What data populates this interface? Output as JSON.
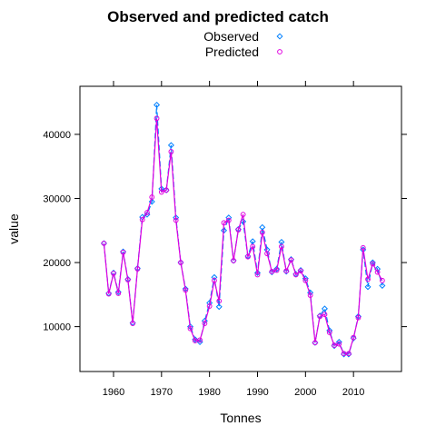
{
  "chart_data": {
    "type": "line",
    "title": "Observed and predicted catch",
    "xlabel": "Tonnes",
    "ylabel": "value",
    "xlim": [
      1953,
      2020
    ],
    "ylim": [
      3000,
      47500
    ],
    "xticks": [
      1960,
      1970,
      1980,
      1990,
      2000,
      2010
    ],
    "yticks": [
      10000,
      20000,
      30000,
      40000
    ],
    "xtick_labels": [
      "1960",
      "1970",
      "1980",
      "1990",
      "2000",
      "2010"
    ],
    "ytick_labels": [
      "10000",
      "20000",
      "30000",
      "40000"
    ],
    "grid": false,
    "legend": "top-center",
    "x": [
      1958,
      1959,
      1960,
      1961,
      1962,
      1963,
      1964,
      1965,
      1966,
      1967,
      1968,
      1969,
      1970,
      1971,
      1972,
      1973,
      1974,
      1975,
      1976,
      1977,
      1978,
      1979,
      1980,
      1981,
      1982,
      1983,
      1984,
      1985,
      1986,
      1987,
      1988,
      1989,
      1990,
      1991,
      1992,
      1993,
      1994,
      1995,
      1996,
      1997,
      1998,
      1999,
      2000,
      2001,
      2002,
      2003,
      2004,
      2005,
      2006,
      2007,
      2008,
      2009,
      2010,
      2011,
      2012,
      2013,
      2014,
      2015,
      2016
    ],
    "series": [
      {
        "name": "Observed",
        "color": "#0080ff",
        "marker": "diamond",
        "values": [
          23000,
          15200,
          18400,
          15400,
          21700,
          17400,
          10600,
          19100,
          27100,
          27500,
          29500,
          44600,
          31500,
          31300,
          38300,
          27000,
          20000,
          15900,
          10000,
          8000,
          7600,
          10900,
          13700,
          17700,
          13100,
          25000,
          27000,
          20300,
          25200,
          26400,
          21000,
          23300,
          18400,
          25500,
          22000,
          18500,
          19000,
          23200,
          18600,
          20500,
          18200,
          18800,
          17500,
          15300,
          7500,
          11700,
          12800,
          9400,
          7000,
          7600,
          5700,
          5700,
          8200,
          11600,
          22000,
          16200,
          20000,
          19000,
          16400
        ]
      },
      {
        "name": "Predicted",
        "color": "#e000e0",
        "marker": "circle",
        "values": [
          23000,
          15100,
          18300,
          15200,
          21600,
          17300,
          10500,
          19000,
          26700,
          27800,
          30200,
          42500,
          31000,
          31300,
          37300,
          26600,
          20000,
          15700,
          9700,
          7800,
          7900,
          10500,
          13200,
          17200,
          14000,
          26200,
          26600,
          20300,
          25100,
          27500,
          20900,
          22500,
          18100,
          24700,
          21400,
          18600,
          18800,
          22500,
          18700,
          20400,
          18100,
          18700,
          17200,
          14900,
          7500,
          11600,
          11900,
          9100,
          7100,
          7300,
          5800,
          5800,
          8300,
          11400,
          22300,
          17400,
          19800,
          18500,
          17200
        ]
      }
    ]
  }
}
